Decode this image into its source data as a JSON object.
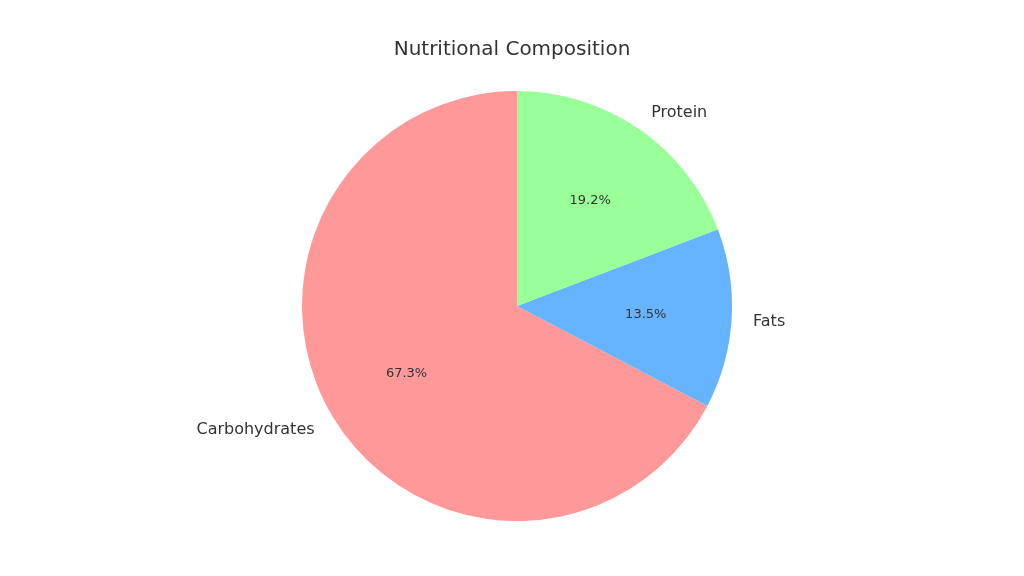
{
  "chart_data": {
    "type": "pie",
    "title": "Nutritional Composition",
    "categories": [
      "Carbohydrates",
      "Fats",
      "Protein"
    ],
    "values": [
      67.3,
      13.5,
      19.2
    ],
    "colors": [
      "#ff9999",
      "#66b3ff",
      "#99ff99"
    ],
    "value_labels": [
      "67.3%",
      "13.5%",
      "19.2%"
    ]
  }
}
